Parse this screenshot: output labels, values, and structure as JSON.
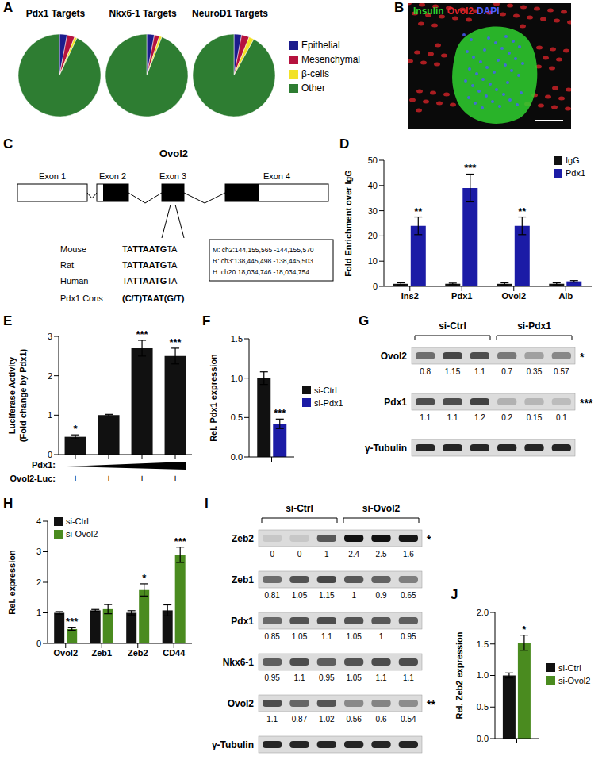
{
  "chart_data": [
    {
      "panel_label": "A",
      "type": "pie",
      "categories": [
        "Epithelial",
        "Mesenchymal",
        "β-cells",
        "Other"
      ],
      "colors": [
        "#1c1c8c",
        "#b5123e",
        "#f2e227",
        "#2e7d32"
      ],
      "series": [
        {
          "name": "Pdx1 Targets",
          "values": [
            3,
            3,
            1,
            93
          ]
        },
        {
          "name": "Nkx6-1 Targets",
          "values": [
            3,
            2,
            1,
            94
          ]
        },
        {
          "name": "NeuroD1 Targets",
          "values": [
            3,
            3,
            2,
            92
          ]
        }
      ],
      "legend": "right"
    },
    {
      "panel_label": "D",
      "type": "bar",
      "ylabel": [
        "Fold Enrichment over IgG"
      ],
      "categories": [
        "Ins2",
        "Pdx1",
        "Ovol2",
        "Alb"
      ],
      "series": [
        {
          "name": "IgG",
          "color": "#111111",
          "values": [
            1,
            1,
            1,
            1
          ],
          "errors": [
            0.4,
            0.3,
            0.4,
            0.4
          ]
        },
        {
          "name": "Pdx1",
          "color": "#1b1ba6",
          "values": [
            24,
            39,
            24,
            2
          ],
          "errors": [
            3.5,
            5.5,
            3.5,
            0.3
          ],
          "annotations": [
            "**",
            "***",
            "**",
            null
          ]
        }
      ],
      "ylim": [
        0,
        50
      ],
      "yticks": [
        0,
        10,
        20,
        30,
        40,
        50
      ],
      "legend": "upper right"
    },
    {
      "panel_label": "E",
      "type": "bar",
      "ylabel": [
        "Luciferase Activity",
        "(Fold change by Pdx1)"
      ],
      "categories": [
        "+",
        "+",
        "+",
        "+"
      ],
      "xlabel_rows": [
        "Pdx1:",
        "Ovol2-Luc:"
      ],
      "series": [
        {
          "color": "#111111",
          "values": [
            0.45,
            1.0,
            2.7,
            2.5
          ],
          "errors": [
            0.05,
            0.02,
            0.2,
            0.2
          ],
          "annotations": [
            "*",
            null,
            "***",
            "***"
          ]
        }
      ],
      "ylim": [
        0,
        3
      ],
      "yticks": [
        0,
        1,
        2,
        3
      ]
    },
    {
      "panel_label": "F",
      "type": "bar",
      "ylabel": [
        "Rel. Pdx1 expression"
      ],
      "categories": [
        null
      ],
      "series": [
        {
          "name": "si-Ctrl",
          "color": "#111111",
          "values": [
            1.0
          ],
          "errors": [
            0.08
          ]
        },
        {
          "name": "si-Pdx1",
          "color": "#1b1ba6",
          "values": [
            0.42
          ],
          "errors": [
            0.06
          ],
          "annotations": [
            "***"
          ]
        }
      ],
      "ylim": [
        0,
        1.5
      ],
      "yticks": [
        {
          "value": 0,
          "label": "0.0"
        },
        0.5,
        {
          "value": 1,
          "label": "1.0"
        },
        1.5
      ],
      "legend": "right"
    },
    {
      "panel_label": "H",
      "type": "bar",
      "ylabel": [
        "Rel. expression"
      ],
      "categories": [
        "Ovol2",
        "Zeb1",
        "Zeb2",
        "CD44"
      ],
      "series": [
        {
          "name": "si-Ctrl",
          "color": "#111111",
          "values": [
            1.0,
            1.08,
            1.0,
            1.08
          ],
          "errors": [
            0.04,
            0.03,
            0.07,
            0.18
          ]
        },
        {
          "name": "si-Ovol2",
          "color": "#4a8b1f",
          "values": [
            0.47,
            1.12,
            1.75,
            2.9
          ],
          "errors": [
            0.04,
            0.15,
            0.2,
            0.25
          ],
          "annotations": [
            "***",
            null,
            "*",
            "***"
          ]
        }
      ],
      "ylim": [
        0,
        4
      ],
      "yticks": [
        0,
        1,
        2,
        3,
        4
      ],
      "legend": "upper left"
    },
    {
      "panel_label": "J",
      "type": "bar",
      "ylabel": [
        "Rel. Zeb2 expression"
      ],
      "categories": [
        null
      ],
      "series": [
        {
          "name": "si-Ctrl",
          "color": "#111111",
          "values": [
            1.0
          ],
          "errors": [
            0.04
          ]
        },
        {
          "name": "si-Ovol2",
          "color": "#4a8b1f",
          "values": [
            1.52
          ],
          "errors": [
            0.12
          ],
          "annotations": [
            "*"
          ]
        }
      ],
      "ylim": [
        0,
        2
      ],
      "yticks": [
        {
          "value": 0,
          "label": "0.0"
        },
        0.5,
        {
          "value": 1,
          "label": "1.0"
        },
        1.5,
        {
          "value": 2,
          "label": "2.0"
        }
      ],
      "legend": "right"
    }
  ],
  "image": {
    "panel_label": "B",
    "channels": [
      {
        "name": "Insulin",
        "color": "#2fd12f"
      },
      {
        "name": "Ovol2",
        "color": "#e0242a"
      },
      {
        "name": "DAPI",
        "color": "#4a5cff"
      }
    ]
  },
  "diagram": {
    "panel_label": "C",
    "gene": "Ovol2",
    "exons": [
      "Exon 1",
      "Exon 2",
      "Exon 3",
      "Exon 4"
    ],
    "alignment": [
      {
        "name": "Mouse",
        "prefix": "TA",
        "core": "TTAATG",
        "suffix": "TA"
      },
      {
        "name": "Rat",
        "prefix": "TA",
        "core": "TTAATG",
        "suffix": "TA"
      },
      {
        "name": "Human",
        "prefix": "TA",
        "core": "TTAATG",
        "suffix": "TA"
      },
      {
        "name": "Pdx1 Cons",
        "core": "(C/T)TAAT(G/T)"
      }
    ],
    "coordinates": [
      "M: ch2:144,155,565 -144,155,570",
      "R: ch3:138,445,498 -138,445,503",
      "H: ch20:18,034,746 -18,034,754"
    ]
  },
  "blots": [
    {
      "panel_label": "G",
      "groups": [
        {
          "label": "si-Ctrl",
          "lanes": 3
        },
        {
          "label": "si-Pdx1",
          "lanes": 3
        }
      ],
      "rows": [
        {
          "name": "Ovol2",
          "values": [
            0.8,
            1.15,
            1.1,
            0.7,
            0.35,
            0.57
          ],
          "annotation": "*"
        },
        {
          "name": "Pdx1",
          "values": [
            1.1,
            1.1,
            1.2,
            0.2,
            0.15,
            0.1
          ],
          "annotation": "***"
        },
        {
          "name": "γ-Tubulin"
        }
      ]
    },
    {
      "panel_label": "I",
      "groups": [
        {
          "label": "si-Ctrl",
          "lanes": 3
        },
        {
          "label": "si-Ovol2",
          "lanes": 3
        }
      ],
      "rows": [
        {
          "name": "Zeb2",
          "values": [
            0,
            0,
            1,
            2.4,
            2.5,
            1.6
          ],
          "annotation": "*"
        },
        {
          "name": "Zeb1",
          "values": [
            0.81,
            1.05,
            1.15,
            1,
            0.9,
            0.65
          ]
        },
        {
          "name": "Pdx1",
          "values": [
            0.85,
            1.05,
            1.1,
            1.05,
            1,
            0.95
          ]
        },
        {
          "name": "Nkx6-1",
          "values": [
            0.95,
            1.1,
            0.95,
            1.05,
            1.1,
            1.1
          ]
        },
        {
          "name": "Ovol2",
          "values": [
            1.1,
            0.87,
            1.02,
            0.56,
            0.6,
            0.54
          ],
          "annotation": "**"
        },
        {
          "name": "γ-Tubulin"
        }
      ]
    }
  ]
}
